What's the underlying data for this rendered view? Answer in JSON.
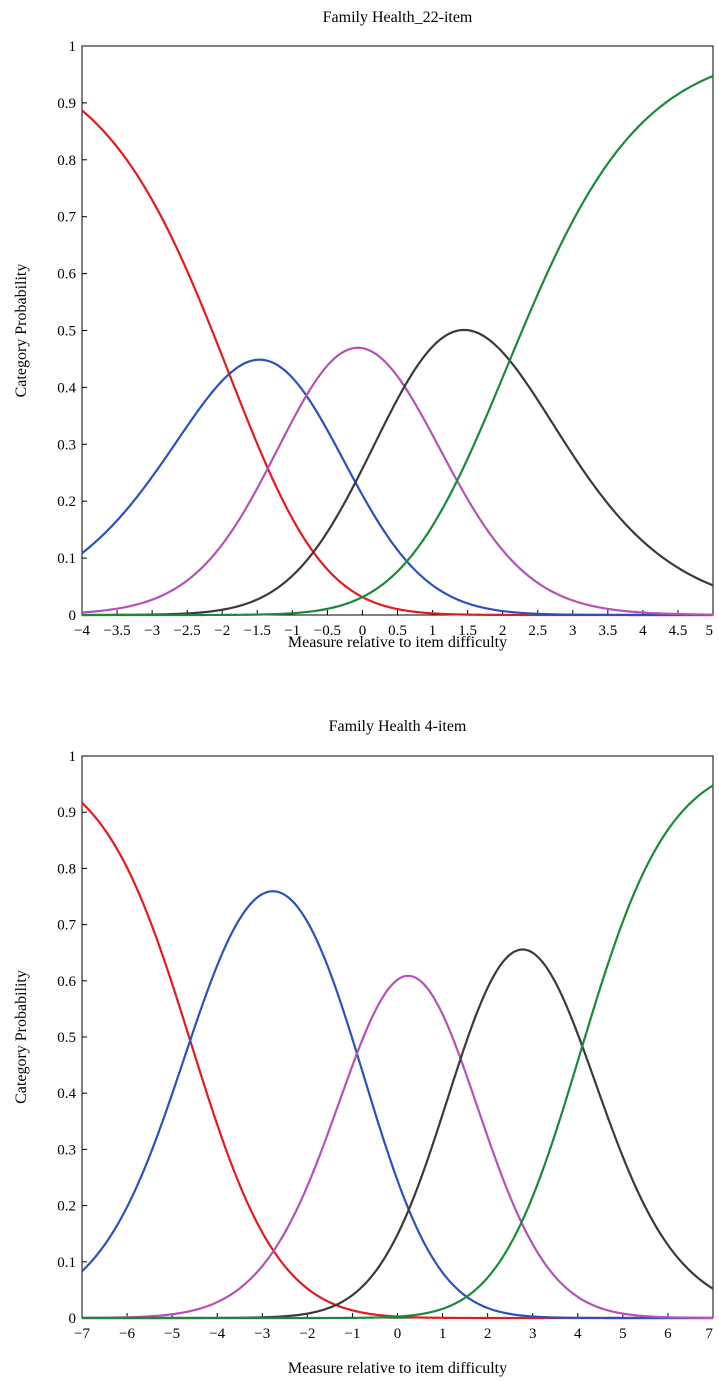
{
  "chart_data": [
    {
      "type": "line",
      "title": "Family Health_22-item",
      "xlabel": "Measure relative to item difficulty",
      "ylabel": "Category Probability",
      "xlim": [
        -4,
        5
      ],
      "ylim": [
        0,
        1
      ],
      "x_ticks": [
        -4,
        -3.5,
        -3,
        -2.5,
        -2,
        -1.5,
        -1,
        -0.5,
        0,
        0.5,
        1,
        1.5,
        2,
        2.5,
        3,
        3.5,
        4,
        4.5,
        5
      ],
      "x_tick_labels": [
        "−4",
        "−3.5",
        "−3",
        "−2.5",
        "−2",
        "−1.5",
        "−1",
        "−0.5",
        "0",
        "0.5",
        "1",
        "1.5",
        "2",
        "2.5",
        "3",
        "3.5",
        "4",
        "4.5",
        "5"
      ],
      "y_ticks": [
        0,
        0.1,
        0.2,
        0.3,
        0.4,
        0.5,
        0.6,
        0.7,
        0.8,
        0.9,
        1
      ],
      "y_tick_labels": [
        "0",
        "0.1",
        "0.2",
        "0.3",
        "0.4",
        "0.5",
        "0.6",
        "0.7",
        "0.8",
        "0.9",
        "1"
      ],
      "grid": false,
      "thresholds": [
        -1.9,
        -0.8,
        0.6,
        2.1
      ],
      "series_colors": [
        "#e41a1c",
        "#2a52be",
        "#b552b5",
        "#3a3a3a",
        "#1a8a3a"
      ]
    },
    {
      "type": "line",
      "title": "Family Health 4-item",
      "xlabel": "Measure relative to item difficulty",
      "ylabel": "Category Probability",
      "xlim": [
        -7,
        7
      ],
      "ylim": [
        0,
        1
      ],
      "x_ticks": [
        -7,
        -6,
        -5,
        -4,
        -3,
        -2,
        -1,
        0,
        1,
        2,
        3,
        4,
        5,
        6,
        7
      ],
      "x_tick_labels": [
        "−7",
        "−6",
        "−5",
        "−4",
        "−3",
        "−2",
        "−1",
        "0",
        "1",
        "2",
        "3",
        "4",
        "5",
        "6",
        "7"
      ],
      "y_ticks": [
        0,
        0.1,
        0.2,
        0.3,
        0.4,
        0.5,
        0.6,
        0.7,
        0.8,
        0.9,
        1
      ],
      "y_tick_labels": [
        "0",
        "0.1",
        "0.2",
        "0.3",
        "0.4",
        "0.5",
        "0.6",
        "0.7",
        "0.8",
        "0.9",
        "1"
      ],
      "grid": false,
      "thresholds": [
        -4.6,
        -0.9,
        1.4,
        4.1
      ],
      "series_colors": [
        "#e41a1c",
        "#2a52be",
        "#b552b5",
        "#3a3a3a",
        "#1a8a3a"
      ]
    }
  ]
}
